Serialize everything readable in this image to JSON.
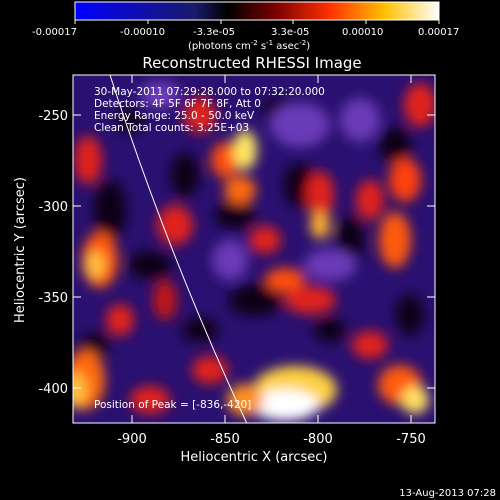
{
  "colorbar": {
    "tick_labels": [
      "-0.00017",
      "-0.00010",
      "-3.3e-05",
      "3.3e-05",
      "0.00010",
      "0.00017"
    ],
    "units_line_main": "(photons cm",
    "units_exp1": "-2",
    "units_mid": " s",
    "units_exp2": "-1",
    "units_mid2": " asec",
    "units_exp3": "-2",
    "units_close": ")",
    "colors": [
      "#0000ff",
      "#000000",
      "#7a0000",
      "#ff3000",
      "#ffc000",
      "#ffffff"
    ]
  },
  "image": {
    "title": "Reconstructed RHESSI Image",
    "info_lines": [
      "30-May-2011 07:29:28.000 to 07:32:20.000",
      "Detectors: 4F 5F 6F 7F 8F, Att 0",
      "Energy Range: 25.0 - 50.0 keV",
      "Clean     Total counts: 3.25E+03"
    ],
    "peak_label": "Position of Peak = [-836,-420]",
    "palette": {
      "background": "#1a0e6b",
      "dark": "#0a0418",
      "purple": "#5a2aa8",
      "red": "#e0201a",
      "orange": "#ff7a10",
      "yellow": "#ffe860",
      "white": "#ffffff"
    }
  },
  "axes": {
    "xlabel": "Heliocentric X (arcsec)",
    "ylabel": "Heliocentric Y (arcsec)",
    "x_ticks": [
      "-900",
      "-850",
      "-800",
      "-750"
    ],
    "y_ticks": [
      "-250",
      "-300",
      "-350",
      "-400"
    ]
  },
  "footer": {
    "timestamp": "13-Aug-2013 07:28"
  }
}
